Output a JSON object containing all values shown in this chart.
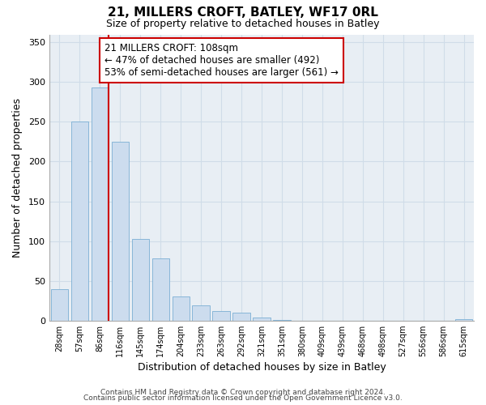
{
  "title": "21, MILLERS CROFT, BATLEY, WF17 0RL",
  "subtitle": "Size of property relative to detached houses in Batley",
  "xlabel": "Distribution of detached houses by size in Batley",
  "ylabel": "Number of detached properties",
  "bar_labels": [
    "28sqm",
    "57sqm",
    "86sqm",
    "116sqm",
    "145sqm",
    "174sqm",
    "204sqm",
    "233sqm",
    "263sqm",
    "292sqm",
    "321sqm",
    "351sqm",
    "380sqm",
    "409sqm",
    "439sqm",
    "468sqm",
    "498sqm",
    "527sqm",
    "556sqm",
    "586sqm",
    "615sqm"
  ],
  "bar_values": [
    39,
    250,
    293,
    225,
    103,
    78,
    30,
    19,
    12,
    10,
    4,
    1,
    0,
    0,
    0,
    0,
    0,
    0,
    0,
    0,
    2
  ],
  "bar_color": "#ccdcee",
  "bar_edge_color": "#7bafd4",
  "marker_bin_index": 2,
  "marker_color": "#cc0000",
  "annotation_title": "21 MILLERS CROFT: 108sqm",
  "annotation_line1": "← 47% of detached houses are smaller (492)",
  "annotation_line2": "53% of semi-detached houses are larger (561) →",
  "annotation_box_color": "#ffffff",
  "annotation_box_edge": "#cc0000",
  "ylim": [
    0,
    360
  ],
  "yticks": [
    0,
    50,
    100,
    150,
    200,
    250,
    300,
    350
  ],
  "footer1": "Contains HM Land Registry data © Crown copyright and database right 2024.",
  "footer2": "Contains public sector information licensed under the Open Government Licence v3.0.",
  "background_color": "#ffffff",
  "grid_color": "#d0dce8",
  "plot_bg_color": "#e8eef4"
}
